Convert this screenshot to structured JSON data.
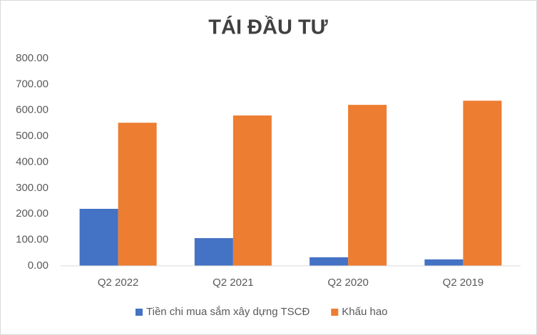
{
  "chart_data": {
    "type": "bar",
    "title": "TÁI ĐẦU TƯ",
    "categories": [
      "Q2 2022",
      "Q2 2021",
      "Q2 2020",
      "Q2 2019"
    ],
    "series": [
      {
        "name": "Tiền chi mua sắm xây dựng TSCĐ",
        "color": "#4472c4",
        "values": [
          220,
          107,
          33,
          25
        ]
      },
      {
        "name": "Khấu hao",
        "color": "#ed7d31",
        "values": [
          552,
          580,
          621,
          637
        ]
      }
    ],
    "ylim": [
      0,
      800
    ],
    "yticks": [
      {
        "value": 0,
        "label": "0.00"
      },
      {
        "value": 100,
        "label": "100.00"
      },
      {
        "value": 200,
        "label": "200.00"
      },
      {
        "value": 300,
        "label": "300.00"
      },
      {
        "value": 400,
        "label": "400.00"
      },
      {
        "value": 500,
        "label": "500.00"
      },
      {
        "value": 600,
        "label": "600.00"
      },
      {
        "value": 700,
        "label": "700.00"
      },
      {
        "value": 800,
        "label": "800.00"
      }
    ],
    "grid": false,
    "legend": "bottom"
  }
}
